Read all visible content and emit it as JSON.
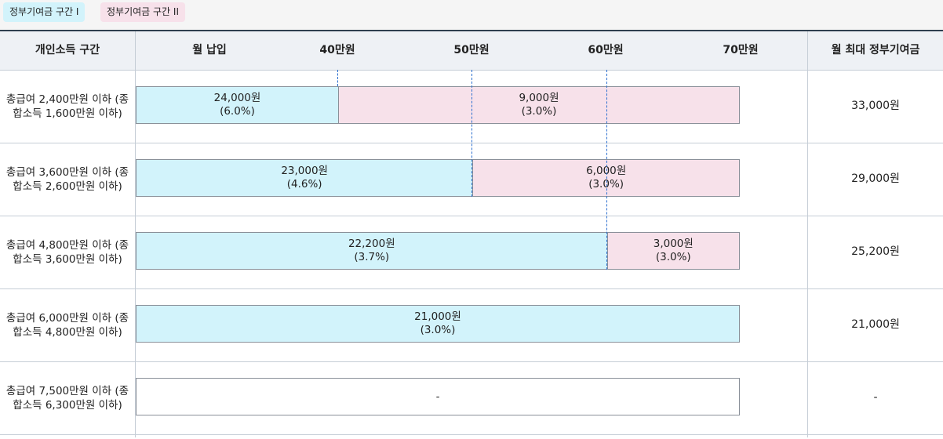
{
  "legend": {
    "tier1": "정부기여금 구간 I",
    "tier2": "정부기여금 구간 II"
  },
  "header": {
    "income_col": "개인소득 구간",
    "payment_col": "월 납입",
    "tick_40": "40만원",
    "tick_50": "50만원",
    "tick_60": "60만원",
    "tick_70": "70만원",
    "max_col": "월 최대 정부기여금"
  },
  "colors": {
    "tier1": "#d2f3fb",
    "tier2": "#f7e1ea",
    "grid": "#2c6fcf"
  },
  "chart_data": {
    "type": "bar",
    "axis_ticks_manwon": [
      40,
      50,
      60,
      70
    ],
    "rows": [
      {
        "income": "총급여 2,400만원 이하 (종합소득 1,600만원 이하)",
        "tier1": {
          "amount": "24,000원",
          "rate": "(6.0%)",
          "end_manwon": 40
        },
        "tier2": {
          "amount": "9,000원",
          "rate": "(3.0%)",
          "end_manwon": 70
        },
        "max": "33,000원"
      },
      {
        "income": "총급여 3,600만원 이하 (종합소득 2,600만원 이하)",
        "tier1": {
          "amount": "23,000원",
          "rate": "(4.6%)",
          "end_manwon": 50
        },
        "tier2": {
          "amount": "6,000원",
          "rate": "(3.0%)",
          "end_manwon": 70
        },
        "max": "29,000원"
      },
      {
        "income": "총급여 4,800만원 이하 (종합소득 3,600만원 이하)",
        "tier1": {
          "amount": "22,200원",
          "rate": "(3.7%)",
          "end_manwon": 60
        },
        "tier2": {
          "amount": "3,000원",
          "rate": "(3.0%)",
          "end_manwon": 70
        },
        "max": "25,200원"
      },
      {
        "income": "총급여 6,000만원 이하 (종합소득 4,800만원 이하)",
        "tier1": {
          "amount": "21,000원",
          "rate": "(3.0%)",
          "end_manwon": 70
        },
        "tier2": null,
        "max": "21,000원"
      },
      {
        "income": "총급여 7,500만원 이하 (종합소득 6,300만원 이하)",
        "tier1": null,
        "tier2": null,
        "empty_label": "-",
        "max": "-"
      }
    ]
  }
}
